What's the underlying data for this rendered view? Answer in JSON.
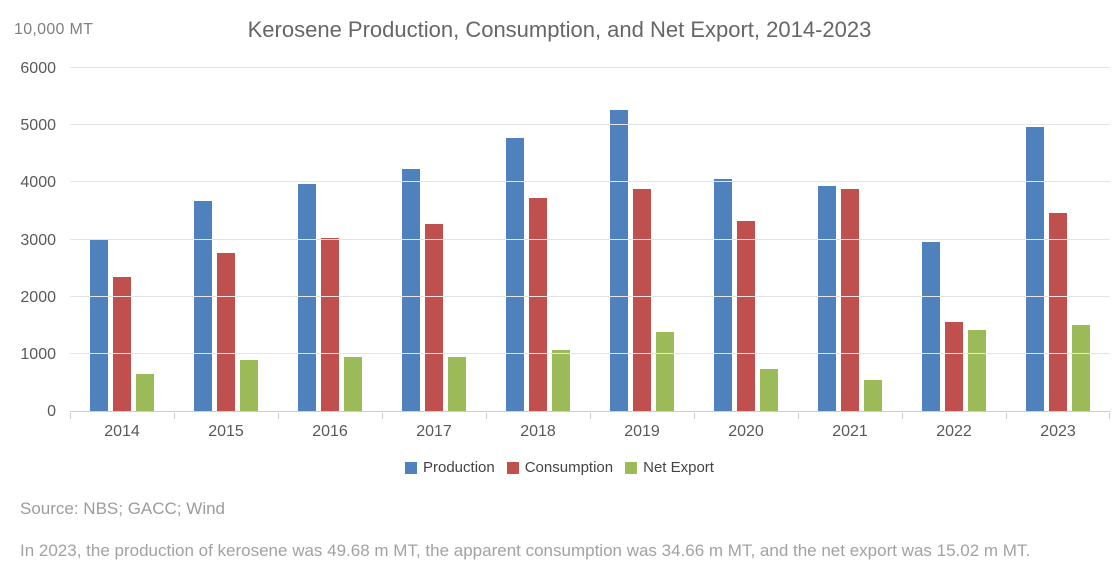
{
  "chart_data": {
    "type": "bar",
    "title": "Kerosene Production, Consumption, and Net Export, 2014-2023",
    "unit_label": "10,000 MT",
    "categories": [
      "2014",
      "2015",
      "2016",
      "2017",
      "2018",
      "2019",
      "2020",
      "2021",
      "2022",
      "2023"
    ],
    "series": [
      {
        "name": "Production",
        "color": "#4f81bd",
        "values": [
          3000,
          3670,
          3970,
          4230,
          4770,
          5270,
          4050,
          3930,
          2950,
          4968
        ]
      },
      {
        "name": "Consumption",
        "color": "#c0504d",
        "values": [
          2350,
          2770,
          3030,
          3280,
          3720,
          3880,
          3320,
          3890,
          1550,
          3466
        ]
      },
      {
        "name": "Net Export",
        "color": "#9bbb59",
        "values": [
          650,
          890,
          950,
          950,
          1060,
          1390,
          730,
          540,
          1410,
          1502
        ]
      }
    ],
    "ylim": [
      0,
      6000
    ],
    "yticks": [
      0,
      1000,
      2000,
      3000,
      4000,
      5000,
      6000
    ],
    "grid": true,
    "legend_position": "bottom",
    "axis_text_color": "#595959",
    "gridline_color": "#e4e4e4"
  },
  "footer": {
    "source": "Source: NBS; GACC; Wind",
    "caption": "In 2023, the production of kerosene was 49.68 m MT, the apparent consumption was 34.66 m MT, and the net export was 15.02 m MT."
  }
}
